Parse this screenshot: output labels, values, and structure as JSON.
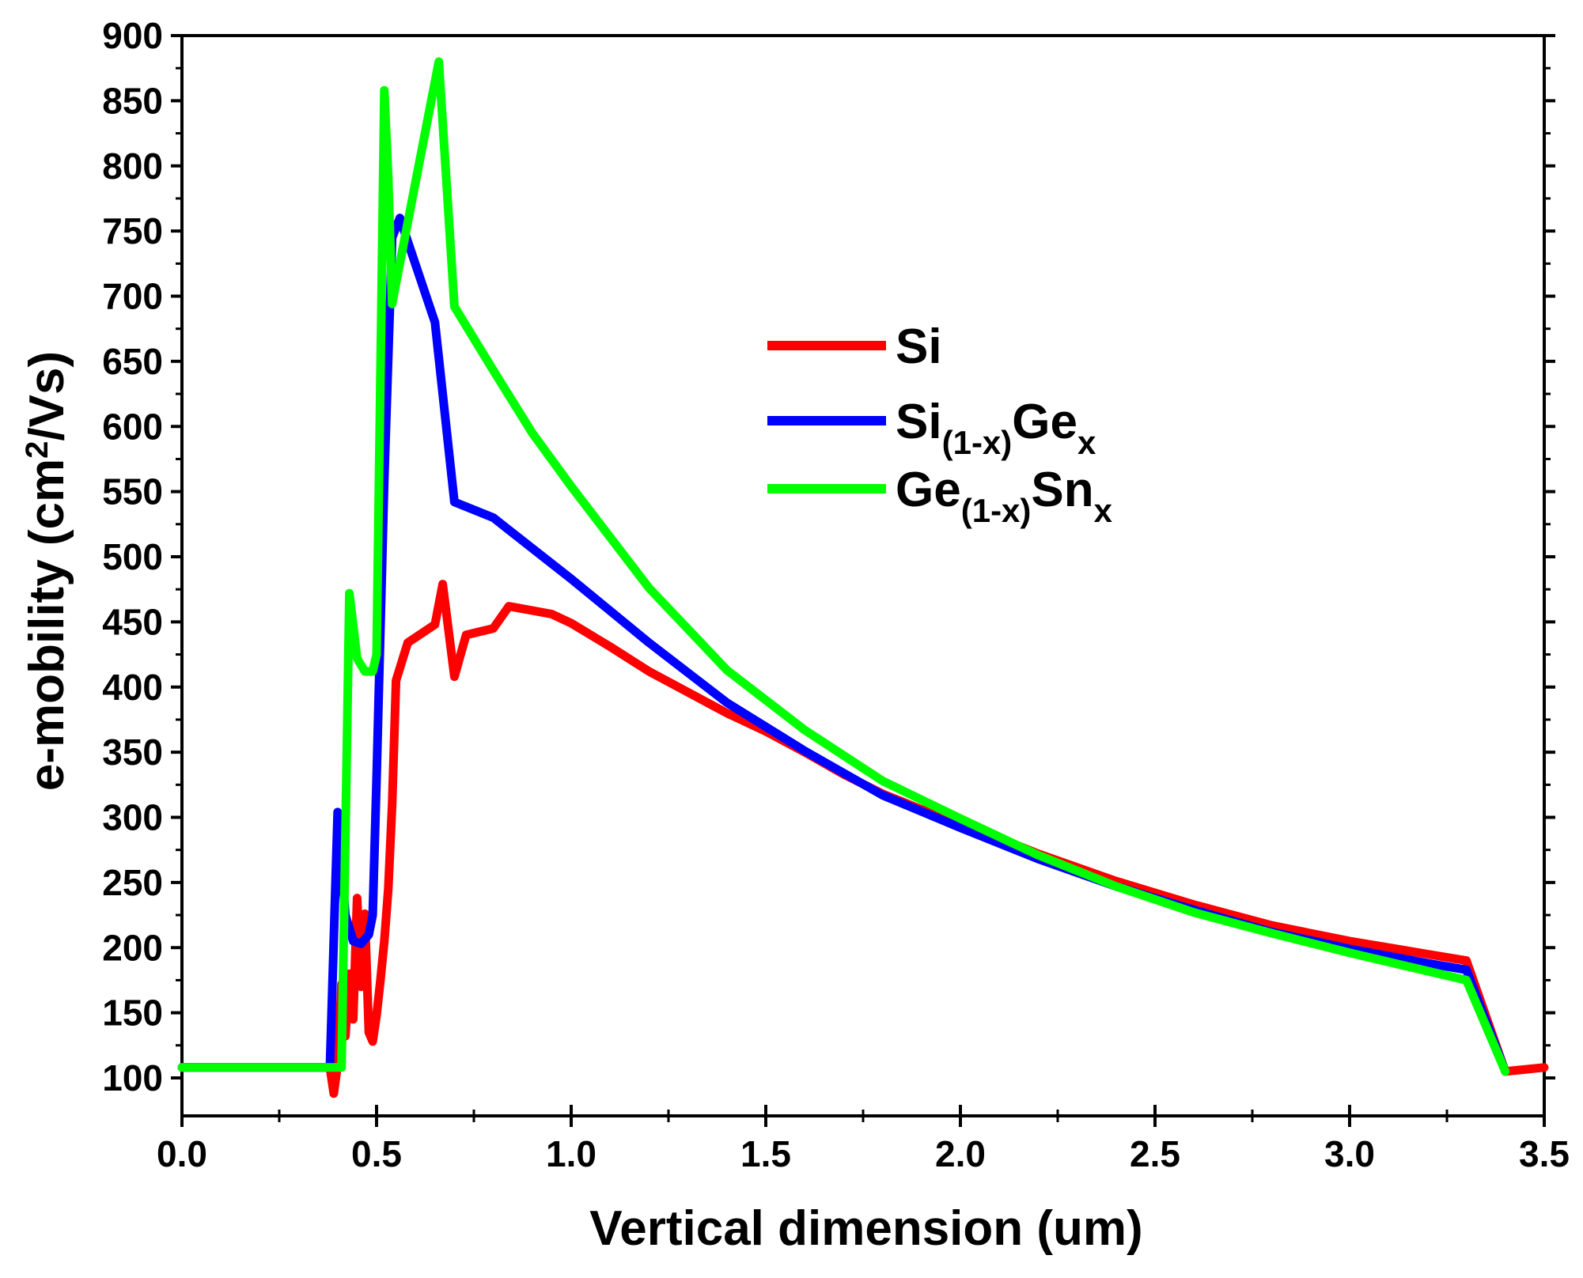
{
  "chart_data": {
    "type": "line",
    "title": "",
    "xlabel": "Vertical dimension (um)",
    "ylabel": {
      "prefix": "e-mobility (cm",
      "superscript": "2",
      "suffix": "/Vs)"
    },
    "xlim": [
      0.0,
      3.5
    ],
    "ylim": [
      75,
      900
    ],
    "xticks": [
      "0.0",
      "0.5",
      "1.0",
      "1.5",
      "2.0",
      "2.5",
      "3.0",
      "3.5"
    ],
    "yticks": [
      "100",
      "150",
      "200",
      "250",
      "300",
      "350",
      "400",
      "450",
      "500",
      "550",
      "600",
      "650",
      "700",
      "750",
      "800",
      "850",
      "900"
    ],
    "grid": false,
    "legend_position": "upper-middle",
    "series": [
      {
        "name": "Si",
        "legend": {
          "base": "Si",
          "sub1": "",
          "mid": "",
          "sub2": ""
        },
        "color": "#ff0000",
        "x": [
          0.0,
          0.38,
          0.39,
          0.4,
          0.41,
          0.42,
          0.43,
          0.44,
          0.45,
          0.46,
          0.47,
          0.48,
          0.49,
          0.5,
          0.51,
          0.52,
          0.53,
          0.54,
          0.55,
          0.58,
          0.65,
          0.67,
          0.7,
          0.73,
          0.8,
          0.84,
          0.95,
          1.0,
          1.1,
          1.2,
          1.3,
          1.4,
          1.5,
          1.6,
          1.7,
          1.8,
          1.9,
          2.0,
          2.2,
          2.4,
          2.6,
          2.8,
          3.0,
          3.2,
          3.3,
          3.4,
          3.5
        ],
        "y": [
          108,
          108,
          88,
          110,
          172,
          132,
          180,
          145,
          238,
          170,
          226,
          135,
          128,
          148,
          175,
          205,
          245,
          310,
          405,
          434,
          448,
          479,
          408,
          440,
          445,
          462,
          456,
          449,
          431,
          412,
          396,
          380,
          366,
          350,
          333,
          318,
          306,
          296,
          272,
          251,
          233,
          217,
          205,
          195,
          190,
          105,
          108
        ]
      },
      {
        "name": "Si(1-x)Gex",
        "legend": {
          "base": "Si",
          "sub1": "(1-x)",
          "mid": "Ge",
          "sub2": "x"
        },
        "color": "#0000ff",
        "x": [
          0.0,
          0.38,
          0.4,
          0.42,
          0.44,
          0.46,
          0.48,
          0.49,
          0.5,
          0.52,
          0.54,
          0.56,
          0.65,
          0.7,
          0.8,
          1.0,
          1.2,
          1.4,
          1.6,
          1.8,
          2.0,
          2.2,
          2.4,
          2.6,
          2.8,
          3.0,
          3.2,
          3.3,
          3.4
        ],
        "y": [
          108,
          108,
          304,
          225,
          205,
          203,
          210,
          225,
          330,
          560,
          745,
          760,
          680,
          542,
          530,
          483,
          434,
          388,
          351,
          317,
          292,
          268,
          247,
          229,
          212,
          199,
          188,
          183,
          105
        ]
      },
      {
        "name": "Ge(1-x)Sn x",
        "legend": {
          "base": "Ge",
          "sub1": "(1-x)",
          "mid": "Sn",
          "sub2": "x"
        },
        "color": "#00ff00",
        "x": [
          0.0,
          0.4,
          0.41,
          0.42,
          0.43,
          0.45,
          0.47,
          0.49,
          0.5,
          0.51,
          0.52,
          0.53,
          0.54,
          0.55,
          0.66,
          0.7,
          0.8,
          0.9,
          1.0,
          1.2,
          1.4,
          1.6,
          1.8,
          2.0,
          2.2,
          2.4,
          2.6,
          2.8,
          3.0,
          3.2,
          3.3,
          3.4
        ],
        "y": [
          108,
          108,
          108,
          285,
          472,
          422,
          412,
          412,
          425,
          640,
          858,
          790,
          694,
          710,
          880,
          692,
          643,
          595,
          554,
          476,
          413,
          367,
          328,
          299,
          271,
          247,
          227,
          211,
          196,
          182,
          175,
          105
        ]
      }
    ]
  }
}
